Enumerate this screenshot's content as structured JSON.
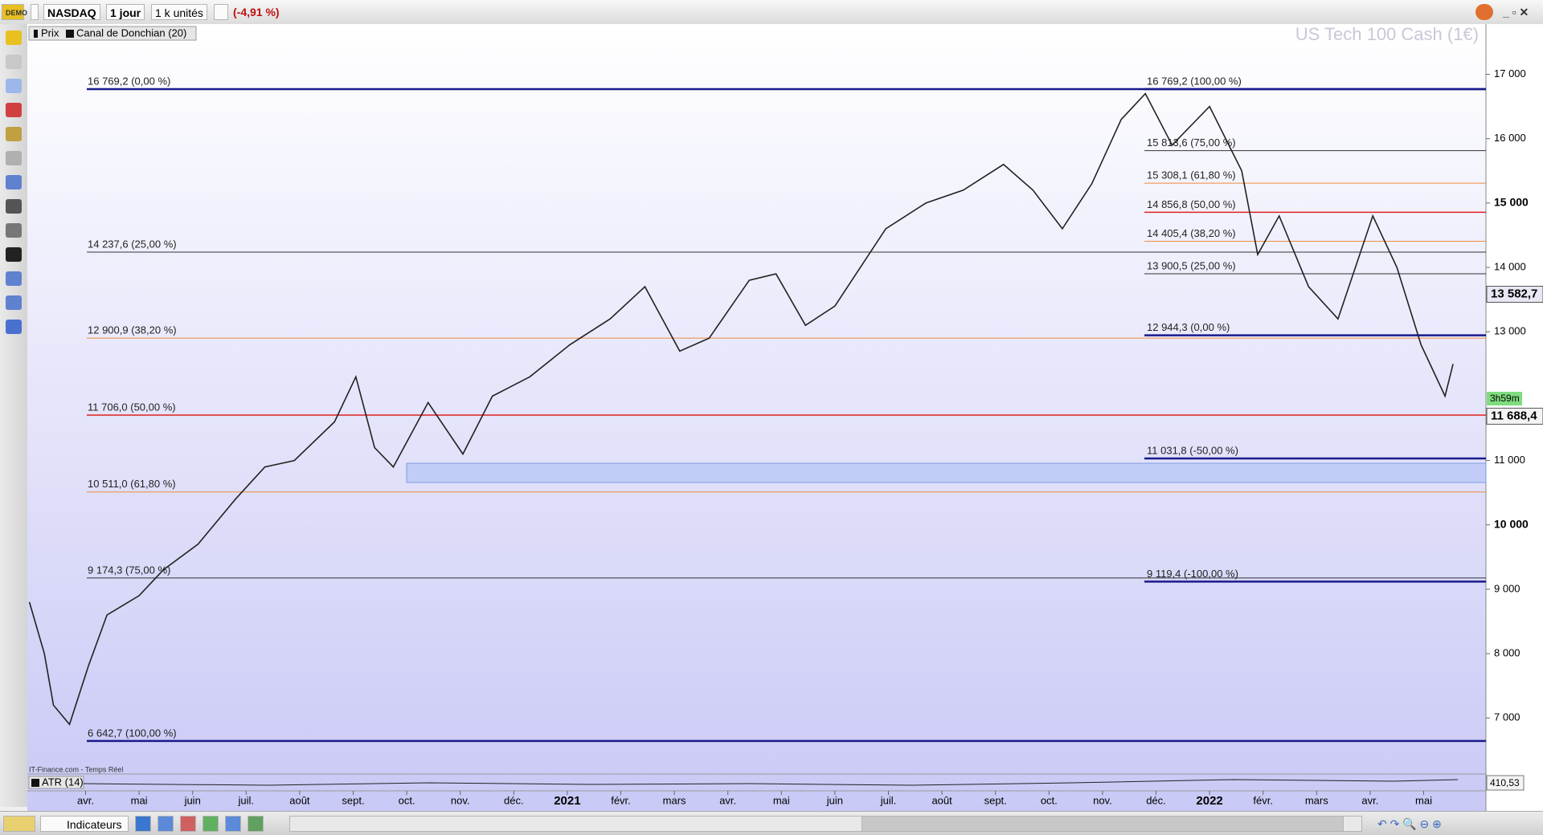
{
  "toolbar": {
    "symbol": "NASDAQ",
    "period": "1 jour",
    "units": "1 k unités",
    "change": "(-4,91 %)"
  },
  "bottom_toolbar": {
    "indicators": "Indicateurs"
  },
  "chart_data": {
    "type": "line",
    "title": "US Tech 100 Cash (1€)",
    "source": "IT-Finance.com - Temps Réel",
    "indicator_legend": "Canal de Donchian (20)",
    "categories": [
      "avr.",
      "mai",
      "juin",
      "juil.",
      "août",
      "sept.",
      "oct.",
      "nov.",
      "déc.",
      "2021",
      "févr.",
      "mars",
      "avr.",
      "mai",
      "juin",
      "juil.",
      "août",
      "sept.",
      "oct.",
      "nov.",
      "déc.",
      "2022",
      "févr.",
      "mars",
      "avr.",
      "mai"
    ],
    "series": [
      {
        "name": "Prix",
        "color": "#222222",
        "x": [
          -1.05,
          -0.77,
          -0.6,
          -0.3,
          0.05,
          0.4,
          1.0,
          1.45,
          2.1,
          2.8,
          3.35,
          3.9,
          4.65,
          5.05,
          5.4,
          5.75,
          6.4,
          7.05,
          7.6,
          8.3,
          9.05,
          9.8,
          10.45,
          11.1,
          11.65,
          12.4,
          12.9,
          13.45,
          14.0,
          14.95,
          15.7,
          16.4,
          17.15,
          17.7,
          18.25,
          18.8,
          19.35,
          19.8,
          20.3,
          21.0,
          21.6,
          21.9,
          22.3,
          22.85,
          23.4,
          24.05,
          24.5,
          24.95,
          25.4,
          25.55
        ],
        "values": [
          8800,
          8000,
          7200,
          6900,
          7800,
          8600,
          8900,
          9300,
          9700,
          10400,
          10900,
          11000,
          11600,
          12300,
          11200,
          10900,
          11900,
          11100,
          12000,
          12300,
          12800,
          13200,
          13700,
          12700,
          12900,
          13800,
          13900,
          13100,
          13400,
          14600,
          15000,
          15200,
          15600,
          15200,
          14600,
          15300,
          16300,
          16700,
          15900,
          16500,
          15500,
          14200,
          14800,
          13700,
          13200,
          14800,
          14000,
          12800,
          12000,
          12500
        ]
      }
    ],
    "ylim": [
      6130,
      17780
    ],
    "yticks": [
      {
        "value": 17000,
        "label": "17 000"
      },
      {
        "value": 16000,
        "label": "16 000"
      },
      {
        "value": 15000,
        "label": "15 000",
        "bold": true
      },
      {
        "value": 14000,
        "label": "14 000"
      },
      {
        "value": 13000,
        "label": "13 000"
      },
      {
        "value": 11000,
        "label": "11 000"
      },
      {
        "value": 10000,
        "label": "10 000",
        "bold": true
      },
      {
        "value": 9000,
        "label": "9 000"
      },
      {
        "value": 8000,
        "label": "8 000"
      },
      {
        "value": 7000,
        "label": "7 000"
      }
    ],
    "fib_left": [
      {
        "value": 16769.2,
        "label": "16 769,2 (0,00 %)",
        "color": "#1a1a8c",
        "width": 2.5
      },
      {
        "value": 14237.6,
        "label": "14 237,6 (25,00 %)",
        "color": "#333333",
        "width": 1
      },
      {
        "value": 12900.9,
        "label": "12 900,9 (38,20 %)",
        "color": "#f08a3c",
        "width": 1
      },
      {
        "value": 11706.0,
        "label": "11 706,0 (50,00 %)",
        "color": "#e02020",
        "width": 1.5
      },
      {
        "value": 10511.0,
        "label": "10 511,0 (61,80 %)",
        "color": "#f08a3c",
        "width": 1
      },
      {
        "value": 9174.3,
        "label": "9 174,3 (75,00 %)",
        "color": "#333333",
        "width": 1
      },
      {
        "value": 6642.7,
        "label": "6 642,7 (100,00 %)",
        "color": "#1a1a8c",
        "width": 2.5
      }
    ],
    "fib_right": [
      {
        "value": 16769.2,
        "label": "16 769,2 (100,00 %)",
        "color": "#1a1a8c",
        "width": 2.5
      },
      {
        "value": 15813.6,
        "label": "15 813,6 (75,00 %)",
        "color": "#333333",
        "width": 1
      },
      {
        "value": 15308.1,
        "label": "15 308,1 (61,80 %)",
        "color": "#f08a3c",
        "width": 1
      },
      {
        "value": 14856.8,
        "label": "14 856,8 (50,00 %)",
        "color": "#e02020",
        "width": 1.5
      },
      {
        "value": 14405.4,
        "label": "14 405,4 (38,20 %)",
        "color": "#f08a3c",
        "width": 1
      },
      {
        "value": 13900.5,
        "label": "13 900,5 (25,00 %)",
        "color": "#333333",
        "width": 1
      },
      {
        "value": 12944.3,
        "label": "12 944,3 (0,00 %)",
        "color": "#1a1a8c",
        "width": 2.5
      },
      {
        "value": 11031.8,
        "label": "11 031,8 (-50,00 %)",
        "color": "#1a1a8c",
        "width": 2.5
      },
      {
        "value": 9119.4,
        "label": "9 119,4 (-100,00 %)",
        "color": "#1a1a8c",
        "width": 2.5
      }
    ],
    "price_labels": [
      {
        "value": 13582.7,
        "label": "13 582,7",
        "background": "#e8e8f4"
      },
      {
        "value": 11688.4,
        "label": "11 688,4",
        "background": "#f4f4f4"
      }
    ],
    "timer": "3h59m",
    "atr": {
      "name": "ATR (14)",
      "value": 410.53,
      "label": "410,53"
    }
  }
}
